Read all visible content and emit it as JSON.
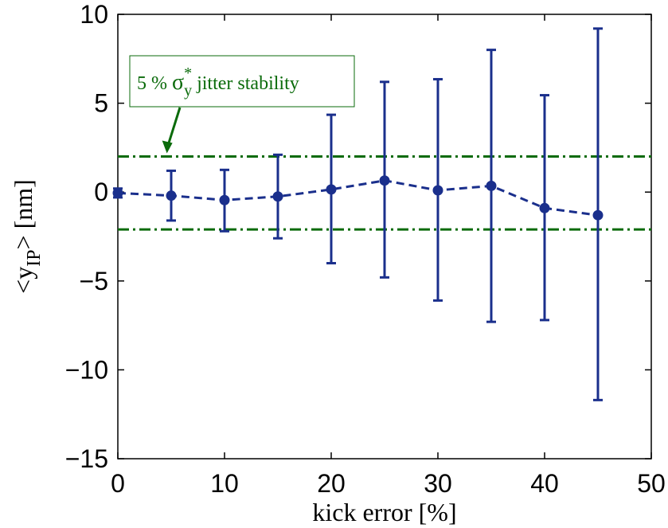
{
  "chart_data": {
    "type": "scatter",
    "xlabel": "kick error [%]",
    "ylabel": {
      "open": "<y",
      "sub": "IP",
      "close": "> [nm]"
    },
    "xlim": [
      0,
      50
    ],
    "ylim": [
      -15,
      10
    ],
    "xticks": [
      0,
      10,
      20,
      30,
      40,
      50
    ],
    "yticks": [
      10,
      5,
      0,
      -5,
      -10,
      -15
    ],
    "xtick_labels": [
      "0",
      "10",
      "20",
      "30",
      "40",
      "50"
    ],
    "ytick_labels": [
      "10",
      "5",
      "0",
      "−5",
      "−10",
      "−15"
    ],
    "grid": false,
    "series": [
      {
        "style": "dashed line with circle markers and error bars",
        "color": "#1a2f8c",
        "x": [
          0,
          5,
          10,
          15,
          20,
          25,
          30,
          35,
          40,
          45
        ],
        "y": [
          -0.05,
          -0.2,
          -0.45,
          -0.25,
          0.15,
          0.65,
          0.1,
          0.35,
          -0.9,
          -1.3
        ],
        "err_low": [
          -0.3,
          -1.6,
          -2.2,
          -2.6,
          -4.0,
          -4.8,
          -6.1,
          -7.3,
          -7.2,
          -11.7
        ],
        "err_high": [
          0.2,
          1.2,
          1.25,
          2.1,
          4.35,
          6.2,
          6.35,
          8.0,
          5.45,
          9.2
        ]
      }
    ],
    "reference_lines": [
      {
        "y": 2.0,
        "style": "dash-dot",
        "color": "#0b6b0b"
      },
      {
        "y": -2.1,
        "style": "dash-dot",
        "color": "#0b6b0b"
      }
    ],
    "annotation": {
      "text_before": "5 % ",
      "symbol": "σ",
      "superscript": "*",
      "subscript": "y",
      "text_after": " jitter stability",
      "color": "#0b6b0b",
      "arrow_target": {
        "x": 4.6,
        "y": 2.0
      }
    }
  }
}
